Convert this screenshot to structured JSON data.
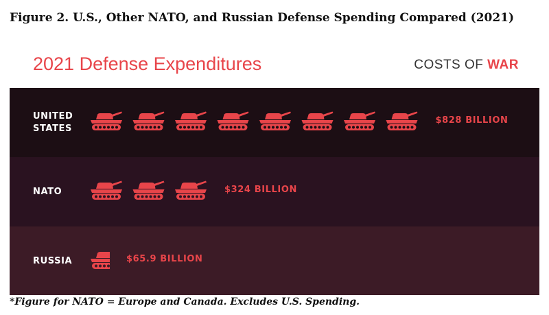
{
  "figure_title": "Figure 2. U.S., Other NATO, and Russian Defense Spending Compared (2021)",
  "chart_title": "2021 Defense Expenditures",
  "brand": {
    "part1": "COSTS OF ",
    "part2": "WAR"
  },
  "footnote": "*Figure for NATO = Europe and Canada. Excludes U.S. Spending.",
  "colors": {
    "accent": "#e8454a",
    "row_us": "#1c0e14",
    "row_nato": "#2a1220",
    "row_russia": "#3c1b26"
  },
  "icon": "tank-icon",
  "chart_data": {
    "type": "bar",
    "title": "2021 Defense Expenditures",
    "unit": "billion USD",
    "categories": [
      "UNITED STATES",
      "NATO",
      "RUSSIA"
    ],
    "label_lines": [
      [
        "UNITED",
        "STATES"
      ],
      [
        "NATO"
      ],
      [
        "RUSSIA"
      ]
    ],
    "values": [
      828,
      324,
      65.9
    ],
    "value_labels": [
      "$828 BILLION",
      "$324 BILLION",
      "$65.9 BILLION"
    ],
    "tank_counts": [
      8,
      3,
      0.6
    ]
  }
}
